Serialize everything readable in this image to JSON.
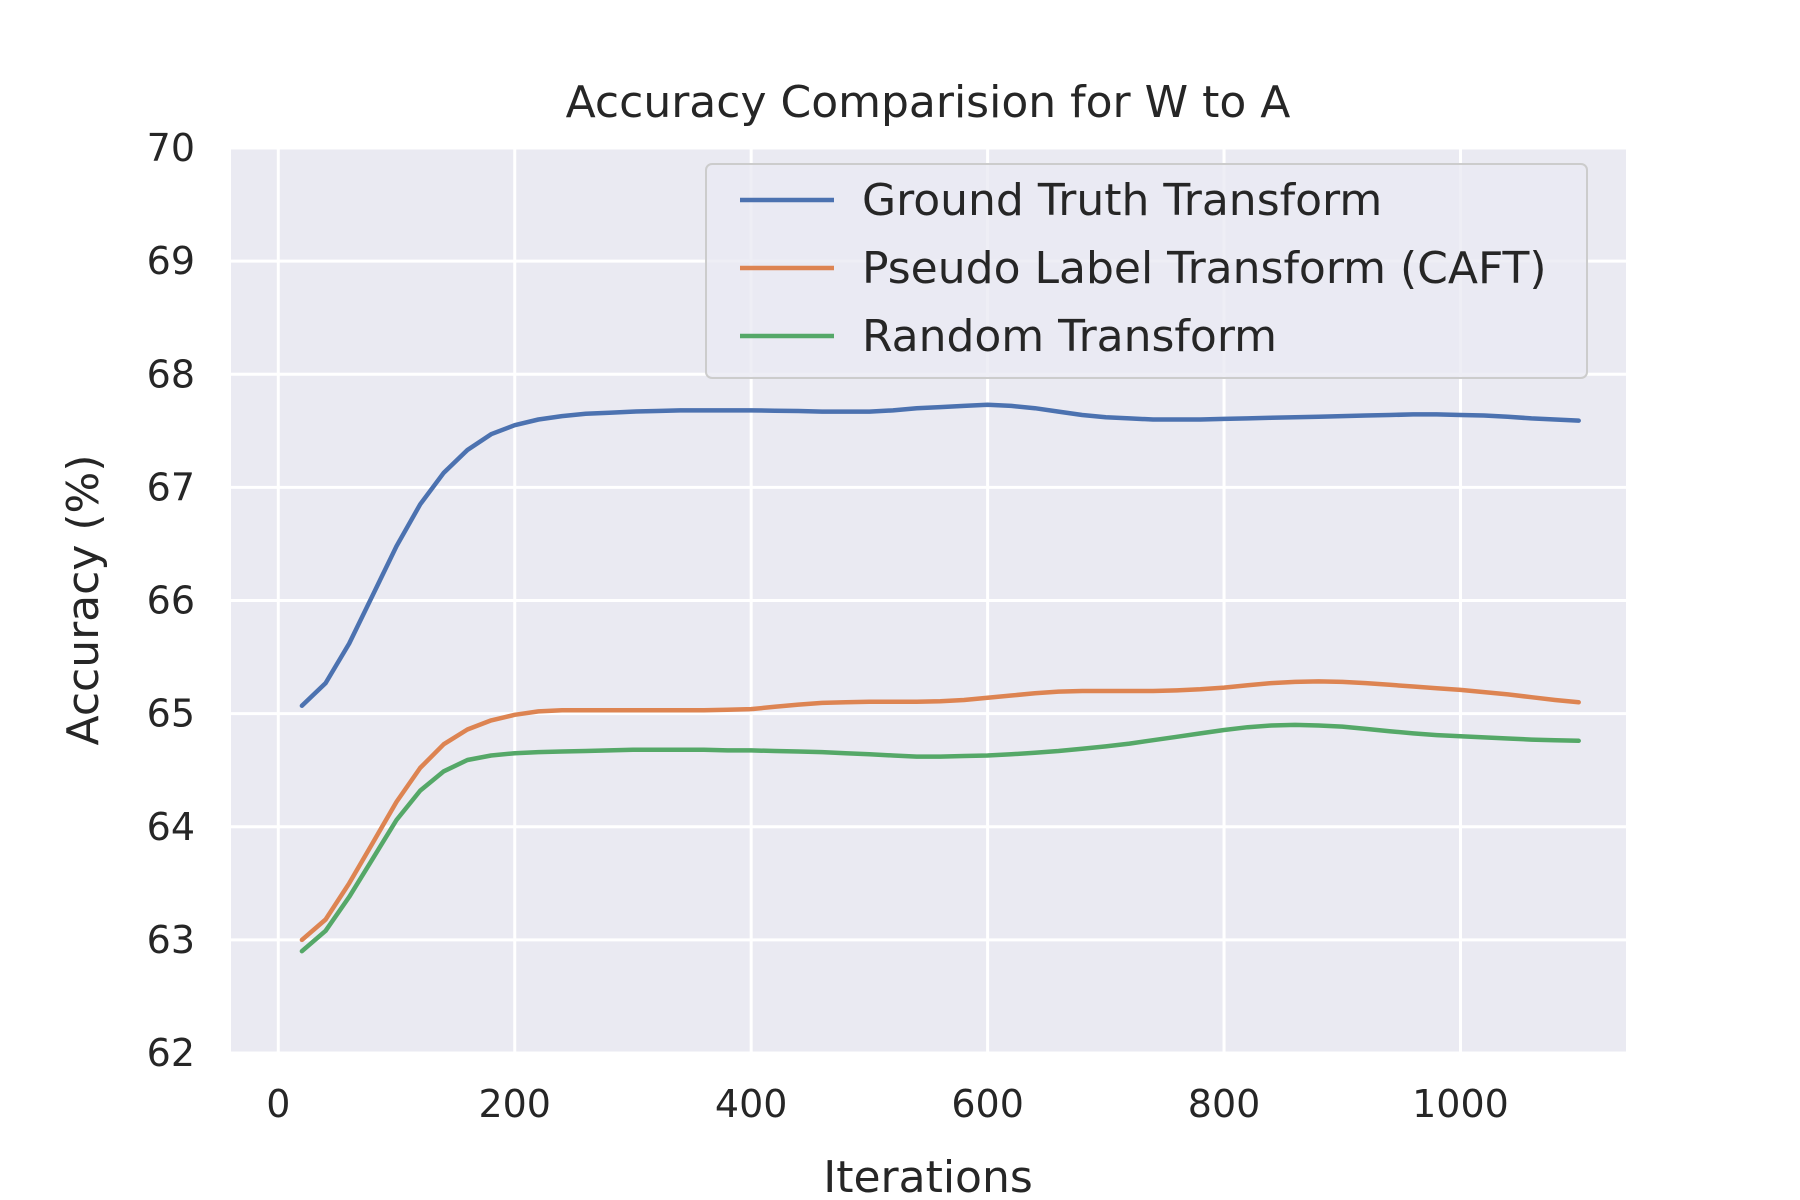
{
  "chart_data": {
    "type": "line",
    "title": "Accuracy Comparision for W to A",
    "xlabel": "Iterations",
    "ylabel": "Accuracy (%)",
    "xlim": [
      -40,
      1140
    ],
    "ylim": [
      62,
      70
    ],
    "xticks": [
      0,
      200,
      400,
      600,
      800,
      1000
    ],
    "yticks": [
      62,
      63,
      64,
      65,
      66,
      67,
      68,
      69,
      70
    ],
    "grid": true,
    "legend_position": "top-right",
    "x": [
      20,
      40,
      60,
      80,
      100,
      120,
      140,
      160,
      180,
      200,
      220,
      240,
      260,
      280,
      300,
      320,
      340,
      360,
      380,
      400,
      420,
      440,
      460,
      480,
      500,
      520,
      540,
      560,
      580,
      600,
      620,
      640,
      660,
      680,
      700,
      720,
      740,
      760,
      780,
      800,
      820,
      840,
      860,
      880,
      900,
      920,
      940,
      960,
      980,
      1000,
      1020,
      1040,
      1060,
      1080,
      1100
    ],
    "series": [
      {
        "name": "Ground Truth Transform",
        "color": "#4c72b0",
        "values": [
          65.07,
          65.27,
          65.62,
          66.05,
          66.48,
          66.85,
          67.13,
          67.33,
          67.47,
          67.55,
          67.6,
          67.63,
          67.65,
          67.66,
          67.67,
          67.675,
          67.68,
          67.68,
          67.68,
          67.68,
          67.678,
          67.675,
          67.67,
          67.67,
          67.67,
          67.68,
          67.7,
          67.71,
          67.72,
          67.73,
          67.72,
          67.7,
          67.67,
          67.64,
          67.62,
          67.61,
          67.6,
          67.6,
          67.6,
          67.605,
          67.61,
          67.615,
          67.62,
          67.625,
          67.63,
          67.635,
          67.64,
          67.645,
          67.645,
          67.64,
          67.635,
          67.625,
          67.61,
          67.6,
          67.59
        ]
      },
      {
        "name": "Pseudo Label Transform (CAFT)",
        "color": "#dd8452",
        "values": [
          63.0,
          63.18,
          63.5,
          63.86,
          64.22,
          64.52,
          64.73,
          64.86,
          64.94,
          64.99,
          65.02,
          65.03,
          65.03,
          65.03,
          65.03,
          65.03,
          65.03,
          65.03,
          65.035,
          65.04,
          65.06,
          65.08,
          65.095,
          65.1,
          65.105,
          65.105,
          65.105,
          65.11,
          65.12,
          65.14,
          65.16,
          65.18,
          65.195,
          65.2,
          65.2,
          65.2,
          65.2,
          65.205,
          65.215,
          65.23,
          65.25,
          65.27,
          65.28,
          65.285,
          65.28,
          65.27,
          65.255,
          65.24,
          65.225,
          65.21,
          65.19,
          65.17,
          65.145,
          65.12,
          65.1
        ]
      },
      {
        "name": "Random Transform",
        "color": "#55a868",
        "values": [
          62.9,
          63.08,
          63.38,
          63.72,
          64.06,
          64.32,
          64.49,
          64.59,
          64.63,
          64.65,
          64.66,
          64.665,
          64.67,
          64.675,
          64.68,
          64.68,
          64.68,
          64.68,
          64.675,
          64.675,
          64.67,
          64.665,
          64.66,
          64.65,
          64.64,
          64.63,
          64.62,
          64.62,
          64.625,
          64.63,
          64.64,
          64.655,
          64.67,
          64.69,
          64.71,
          64.735,
          64.765,
          64.795,
          64.825,
          64.855,
          64.88,
          64.895,
          64.9,
          64.895,
          64.885,
          64.865,
          64.845,
          64.825,
          64.81,
          64.8,
          64.79,
          64.78,
          64.77,
          64.765,
          64.76
        ]
      }
    ]
  }
}
